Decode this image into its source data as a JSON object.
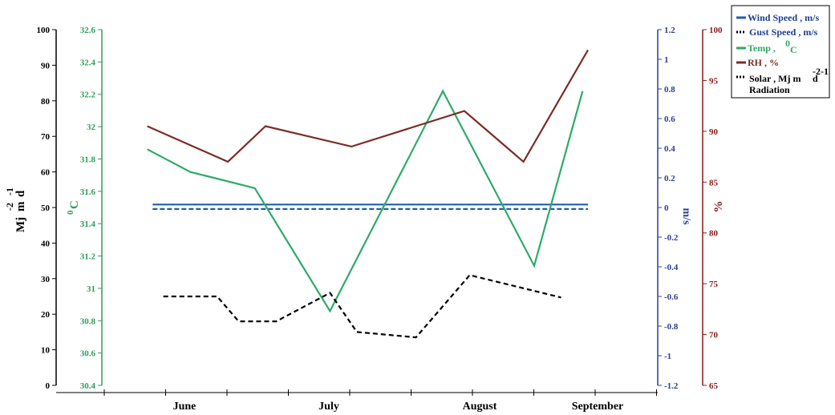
{
  "chart_data": {
    "type": "line",
    "categories": [
      "June",
      "July",
      "August",
      "September"
    ],
    "axes": {
      "solar": {
        "label": "Mj m-2 d-1",
        "label_main": "Mj",
        "label_m": "m",
        "label_exp1": "-2",
        "label_d": "d",
        "label_exp2": "-1",
        "ylim": [
          0,
          100
        ],
        "ticks": [
          "100",
          "90",
          "80",
          "70",
          "60",
          "50",
          "40",
          "30",
          "20",
          "10",
          "0"
        ],
        "color": "#000000"
      },
      "temp": {
        "label": "0C",
        "label_sup": "0",
        "label_main": "C",
        "ylim": [
          30.4,
          32.6
        ],
        "ticks": [
          "32.6",
          "32.4",
          "32.2",
          "32",
          "31.8",
          "31.6",
          "31.4",
          "31.2",
          "31",
          "30.8",
          "30.6",
          "30.4"
        ],
        "color": "#2e9e5b"
      },
      "wind": {
        "label": "m/s",
        "ylim": [
          -1.2,
          1.2
        ],
        "ticks": [
          "1.2",
          "1",
          "0.8",
          "0.6",
          "0.4",
          "0.2",
          "0",
          "-0.2",
          "-0.4",
          "-0.6",
          "-0.8",
          "-1",
          "-1.2"
        ],
        "color": "#2f3f8f"
      },
      "rh": {
        "label": "%",
        "ylim": [
          65,
          100
        ],
        "ticks": [
          "100",
          "95",
          "90",
          "85",
          "80",
          "75",
          "70",
          "65"
        ],
        "color": "#8b1a1a"
      }
    },
    "series": [
      {
        "name": "Wind Speed , m/s",
        "axis": "wind",
        "color": "#1f5fa8",
        "dash": "",
        "x": [
          0.9,
          9.0
        ],
        "values": [
          0.02,
          0.02
        ]
      },
      {
        "name": "Gust Speed , m/s",
        "axis": "wind",
        "color": "#1f5fa8",
        "dash": "6,3",
        "x": [
          0.9,
          9.0
        ],
        "values": [
          -0.01,
          -0.01
        ]
      },
      {
        "name": "Temp , 0C",
        "axis": "temp",
        "color": "#2eaa6a",
        "dash": "",
        "x": [
          0.8,
          1.6,
          2.8,
          4.2,
          6.3,
          8.0,
          8.9
        ],
        "values": [
          31.86,
          31.72,
          31.62,
          30.86,
          32.22,
          31.14,
          32.22
        ]
      },
      {
        "name": "RH , %",
        "axis": "rh",
        "color": "#7b2d26",
        "dash": "",
        "x": [
          0.8,
          2.3,
          3.0,
          4.6,
          6.7,
          7.8,
          9.0
        ],
        "values": [
          90.5,
          87.0,
          90.5,
          88.5,
          92.0,
          87.0,
          98.0
        ]
      },
      {
        "name": "Solar Radiation , Mj m-2 d-1",
        "axis": "solar",
        "color": "#000000",
        "dash": "6,4",
        "x": [
          1.1,
          2.1,
          2.5,
          3.2,
          4.2,
          4.7,
          5.8,
          6.8,
          8.5
        ],
        "values": [
          25,
          25,
          18,
          18,
          26,
          15,
          13.5,
          31,
          24.7
        ]
      }
    ],
    "legend": {
      "position": "top-right",
      "entries": [
        {
          "label": "Wind Speed , m/s",
          "color": "#1f5fa8",
          "style": "solid"
        },
        {
          "label": "Gust Speed , m/s",
          "color": "#000000",
          "style": "dotted"
        },
        {
          "label": "Temp , 0C",
          "color": "#2eaa6a",
          "style": "solid"
        },
        {
          "label": "RH , %",
          "color": "#7b2d26",
          "style": "solid"
        },
        {
          "label": "Solar , Mj m-2 d-1 Radiation",
          "color": "#000000",
          "style": "dotted"
        }
      ],
      "texts": {
        "wind_a": "Wind Speed , m/s",
        "gust_a": "Gust Speed , m/s",
        "temp_a": "Temp , ",
        "temp_sup": "0",
        "temp_c": "C",
        "rh_a": "RH , %",
        "solar_a": "Solar  , Mj m",
        "solar_sup": "-2",
        "solar_d": " d",
        "solar_sup2": "-1",
        "solar_b": "Radiation"
      }
    },
    "grid": false
  }
}
